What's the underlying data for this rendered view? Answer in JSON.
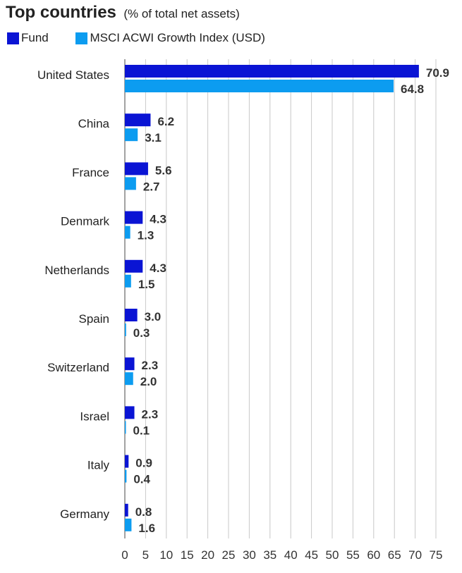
{
  "chart_data": {
    "type": "bar",
    "orientation": "horizontal",
    "title": "Top countries",
    "subtitle": "(% of total net assets)",
    "categories": [
      "United States",
      "China",
      "France",
      "Denmark",
      "Netherlands",
      "Spain",
      "Switzerland",
      "Israel",
      "Italy",
      "Germany"
    ],
    "series": [
      {
        "name": "Fund",
        "color": "#0a14d4",
        "values": [
          70.9,
          6.2,
          5.6,
          4.3,
          4.3,
          3.0,
          2.3,
          2.3,
          0.9,
          0.8
        ],
        "labels": [
          "70.9",
          "6.2",
          "5.6",
          "4.3",
          "4.3",
          "3.0",
          "2.3",
          "2.3",
          "0.9",
          "0.8"
        ]
      },
      {
        "name": "MSCI ACWI Growth Index (USD)",
        "color": "#0c9cf0",
        "values": [
          64.8,
          3.1,
          2.7,
          1.3,
          1.5,
          0.3,
          2.0,
          0.1,
          0.4,
          1.6
        ],
        "labels": [
          "64.8",
          "3.1",
          "2.7",
          "1.3",
          "1.5",
          "0.3",
          "2.0",
          "0.1",
          "0.4",
          "1.6"
        ]
      }
    ],
    "xlim": [
      0,
      75
    ],
    "xticks": [
      "0",
      "5",
      "10",
      "15",
      "20",
      "25",
      "30",
      "35",
      "40",
      "45",
      "50",
      "55",
      "60",
      "65",
      "70",
      "75"
    ],
    "grid": "vertical",
    "legend_position": "top-left"
  }
}
